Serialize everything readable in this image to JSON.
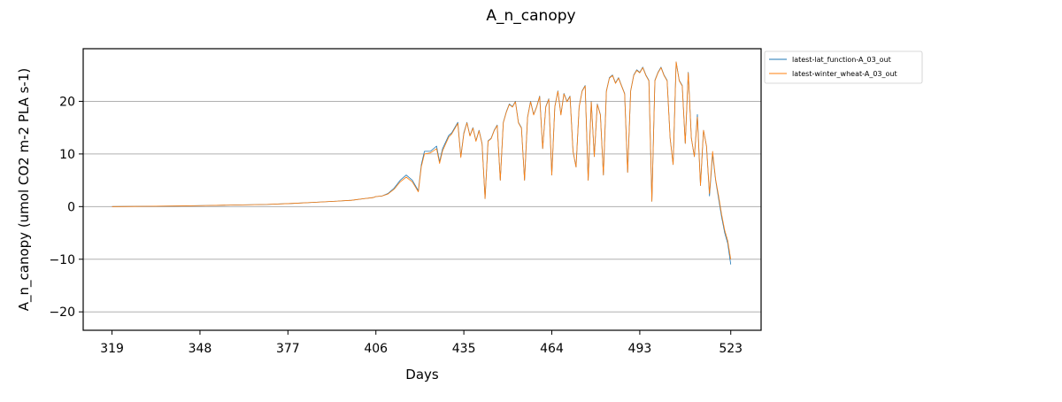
{
  "chart_data": {
    "type": "line",
    "title": "A_n_canopy",
    "xlabel": "Days",
    "ylabel": "A_n_canopy (umol CO2 m-2 PLA s-1)",
    "xlim": [
      309.5,
      533
    ],
    "ylim": [
      -23.5,
      30
    ],
    "x_ticks": [
      319,
      348,
      377,
      406,
      435,
      464,
      493,
      523
    ],
    "y_ticks": [
      -20,
      -10,
      0,
      10,
      20
    ],
    "grid": "horizontal",
    "legend_position": "outside-right-top",
    "series": [
      {
        "name": "latest-lat_function-A_03_out",
        "color": "#1f77b4",
        "x": [
          319,
          330,
          340,
          350,
          360,
          370,
          378,
          385,
          392,
          398,
          402,
          405,
          406,
          408,
          410,
          412,
          414,
          416,
          418,
          420,
          421,
          422,
          424,
          426,
          427,
          428,
          430,
          431,
          433,
          434,
          435,
          436,
          437,
          438,
          439,
          440,
          441,
          442,
          443,
          444,
          445,
          446,
          447,
          448,
          449,
          450,
          451,
          452,
          453,
          454,
          455,
          456,
          457,
          458,
          459,
          460,
          461,
          462,
          463,
          464,
          465,
          466,
          467,
          468,
          469,
          470,
          471,
          472,
          473,
          474,
          475,
          476,
          477,
          478,
          479,
          480,
          481,
          482,
          483,
          484,
          485,
          486,
          487,
          488,
          489,
          490,
          491,
          492,
          493,
          494,
          495,
          496,
          497,
          498,
          499,
          500,
          501,
          502,
          503,
          504,
          505,
          506,
          507,
          508,
          509,
          510,
          511,
          512,
          513,
          514,
          515,
          516,
          517,
          518,
          519,
          520,
          521,
          522,
          523
        ],
        "y": [
          0.0,
          0.05,
          0.1,
          0.2,
          0.3,
          0.4,
          0.6,
          0.8,
          1.0,
          1.2,
          1.5,
          1.7,
          1.9,
          2.0,
          2.5,
          3.5,
          5.0,
          6.0,
          5.0,
          3.0,
          8.0,
          10.5,
          10.5,
          11.5,
          8.5,
          11.0,
          13.5,
          14.0,
          16.0,
          9.5,
          14.0,
          16.0,
          13.5,
          15.0,
          12.5,
          14.5,
          12.0,
          1.5,
          12.5,
          13.0,
          14.5,
          15.5,
          5.0,
          16.0,
          18.0,
          19.5,
          19.0,
          20.0,
          16.0,
          15.0,
          5.0,
          17.0,
          20.0,
          17.5,
          19.0,
          21.0,
          11.0,
          19.0,
          20.5,
          6.0,
          19.0,
          22.0,
          17.5,
          21.5,
          20.0,
          21.0,
          10.5,
          7.5,
          19.0,
          22.0,
          23.0,
          5.0,
          20.0,
          9.5,
          19.5,
          17.5,
          6.0,
          22.0,
          24.5,
          25.0,
          23.5,
          24.5,
          23.0,
          21.5,
          6.5,
          22.0,
          25.0,
          26.0,
          25.5,
          26.5,
          25.0,
          24.0,
          1.0,
          24.0,
          25.5,
          26.5,
          25.0,
          24.0,
          13.0,
          8.0,
          27.5,
          24.0,
          23.0,
          12.0,
          25.5,
          13.0,
          9.5,
          17.5,
          4.0,
          14.5,
          11.5,
          2.0,
          10.0,
          5.0,
          1.5,
          -2.0,
          -5.0,
          -7.0,
          -11.0
        ]
      },
      {
        "name": "latest-winter_wheat-A_03_out",
        "color": "#ff7f0e",
        "x": [
          319,
          330,
          340,
          350,
          360,
          370,
          378,
          385,
          392,
          398,
          402,
          405,
          406,
          408,
          410,
          412,
          414,
          416,
          418,
          420,
          421,
          422,
          424,
          426,
          427,
          428,
          430,
          431,
          433,
          434,
          435,
          436,
          437,
          438,
          439,
          440,
          441,
          442,
          443,
          444,
          445,
          446,
          447,
          448,
          449,
          450,
          451,
          452,
          453,
          454,
          455,
          456,
          457,
          458,
          459,
          460,
          461,
          462,
          463,
          464,
          465,
          466,
          467,
          468,
          469,
          470,
          471,
          472,
          473,
          474,
          475,
          476,
          477,
          478,
          479,
          480,
          481,
          482,
          483,
          484,
          485,
          486,
          487,
          488,
          489,
          490,
          491,
          492,
          493,
          494,
          495,
          496,
          497,
          498,
          499,
          500,
          501,
          502,
          503,
          504,
          505,
          506,
          507,
          508,
          509,
          510,
          511,
          512,
          513,
          514,
          515,
          516,
          517,
          518,
          519,
          520,
          521,
          522,
          523
        ],
        "y": [
          0.0,
          0.05,
          0.1,
          0.2,
          0.3,
          0.4,
          0.6,
          0.8,
          1.0,
          1.2,
          1.5,
          1.7,
          1.9,
          2.0,
          2.4,
          3.3,
          4.7,
          5.6,
          4.7,
          2.8,
          7.6,
          10.0,
          10.2,
          11.0,
          8.2,
          10.6,
          13.2,
          13.8,
          15.8,
          9.3,
          13.8,
          15.9,
          13.4,
          14.9,
          12.4,
          14.4,
          11.9,
          1.5,
          12.4,
          12.9,
          14.4,
          15.4,
          5.0,
          15.9,
          17.9,
          19.4,
          18.9,
          19.9,
          15.9,
          14.9,
          5.0,
          16.9,
          19.9,
          17.4,
          18.9,
          20.9,
          11.0,
          18.9,
          20.4,
          6.0,
          18.9,
          21.9,
          17.4,
          21.4,
          19.9,
          20.9,
          10.5,
          7.5,
          18.9,
          21.9,
          22.9,
          5.0,
          19.9,
          9.5,
          19.4,
          17.4,
          6.0,
          21.9,
          24.4,
          24.9,
          23.4,
          24.4,
          22.9,
          21.4,
          6.5,
          21.9,
          24.9,
          25.9,
          25.4,
          26.4,
          24.9,
          23.9,
          1.0,
          23.9,
          25.4,
          26.4,
          24.9,
          23.9,
          13.0,
          8.0,
          27.5,
          23.9,
          22.9,
          12.0,
          25.4,
          13.0,
          9.5,
          17.0,
          4.0,
          14.5,
          11.5,
          2.5,
          10.5,
          5.2,
          2.0,
          -1.5,
          -4.5,
          -6.5,
          -10.0
        ]
      }
    ]
  }
}
